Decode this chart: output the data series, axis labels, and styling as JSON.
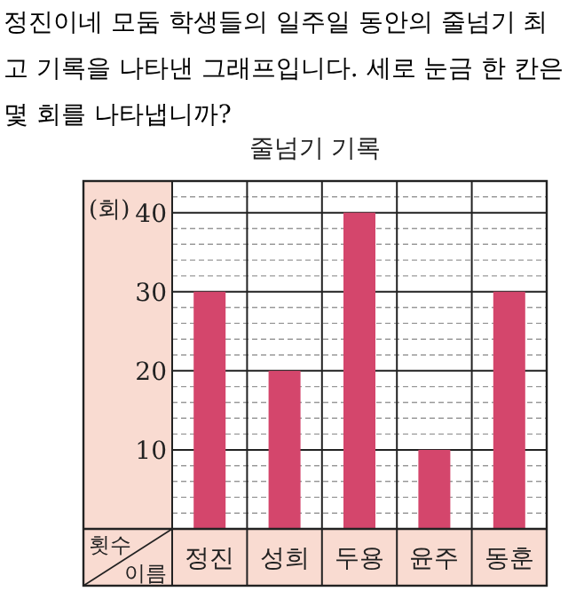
{
  "chart_data": {
    "type": "bar",
    "title": "줄넘기 기록",
    "ylabel": "(회)",
    "xlabel": "이름",
    "annotations": [
      "정진이네 모둠 학생들의 일주일 동안의 줄넘기 최고 기록을 나타낸 그래프입니다. 세로 눈금 한 칸은 몇 회를 나타냅니까?",
      "횟수"
    ],
    "categories": [
      "정진",
      "성희",
      "두용",
      "윤주",
      "동훈"
    ],
    "values": [
      30,
      20,
      40,
      10,
      30
    ],
    "color": "#d4466c",
    "ylim": [
      0,
      44
    ],
    "yticks": [
      {
        "value": 2,
        "label": null
      },
      {
        "value": 4,
        "label": null
      },
      {
        "value": 6,
        "label": null
      },
      {
        "value": 8,
        "label": null
      },
      10,
      {
        "value": 12,
        "label": null
      },
      {
        "value": 14,
        "label": null
      },
      {
        "value": 16,
        "label": null
      },
      {
        "value": 18,
        "label": null
      },
      20,
      {
        "value": 22,
        "label": null
      },
      {
        "value": 24,
        "label": null
      },
      {
        "value": 26,
        "label": null
      },
      {
        "value": 28,
        "label": null
      },
      30,
      {
        "value": 32,
        "label": null
      },
      {
        "value": 34,
        "label": null
      },
      {
        "value": 36,
        "label": null
      },
      {
        "value": 38,
        "label": null
      },
      40,
      {
        "value": 42,
        "label": null
      }
    ],
    "grid": "y"
  }
}
